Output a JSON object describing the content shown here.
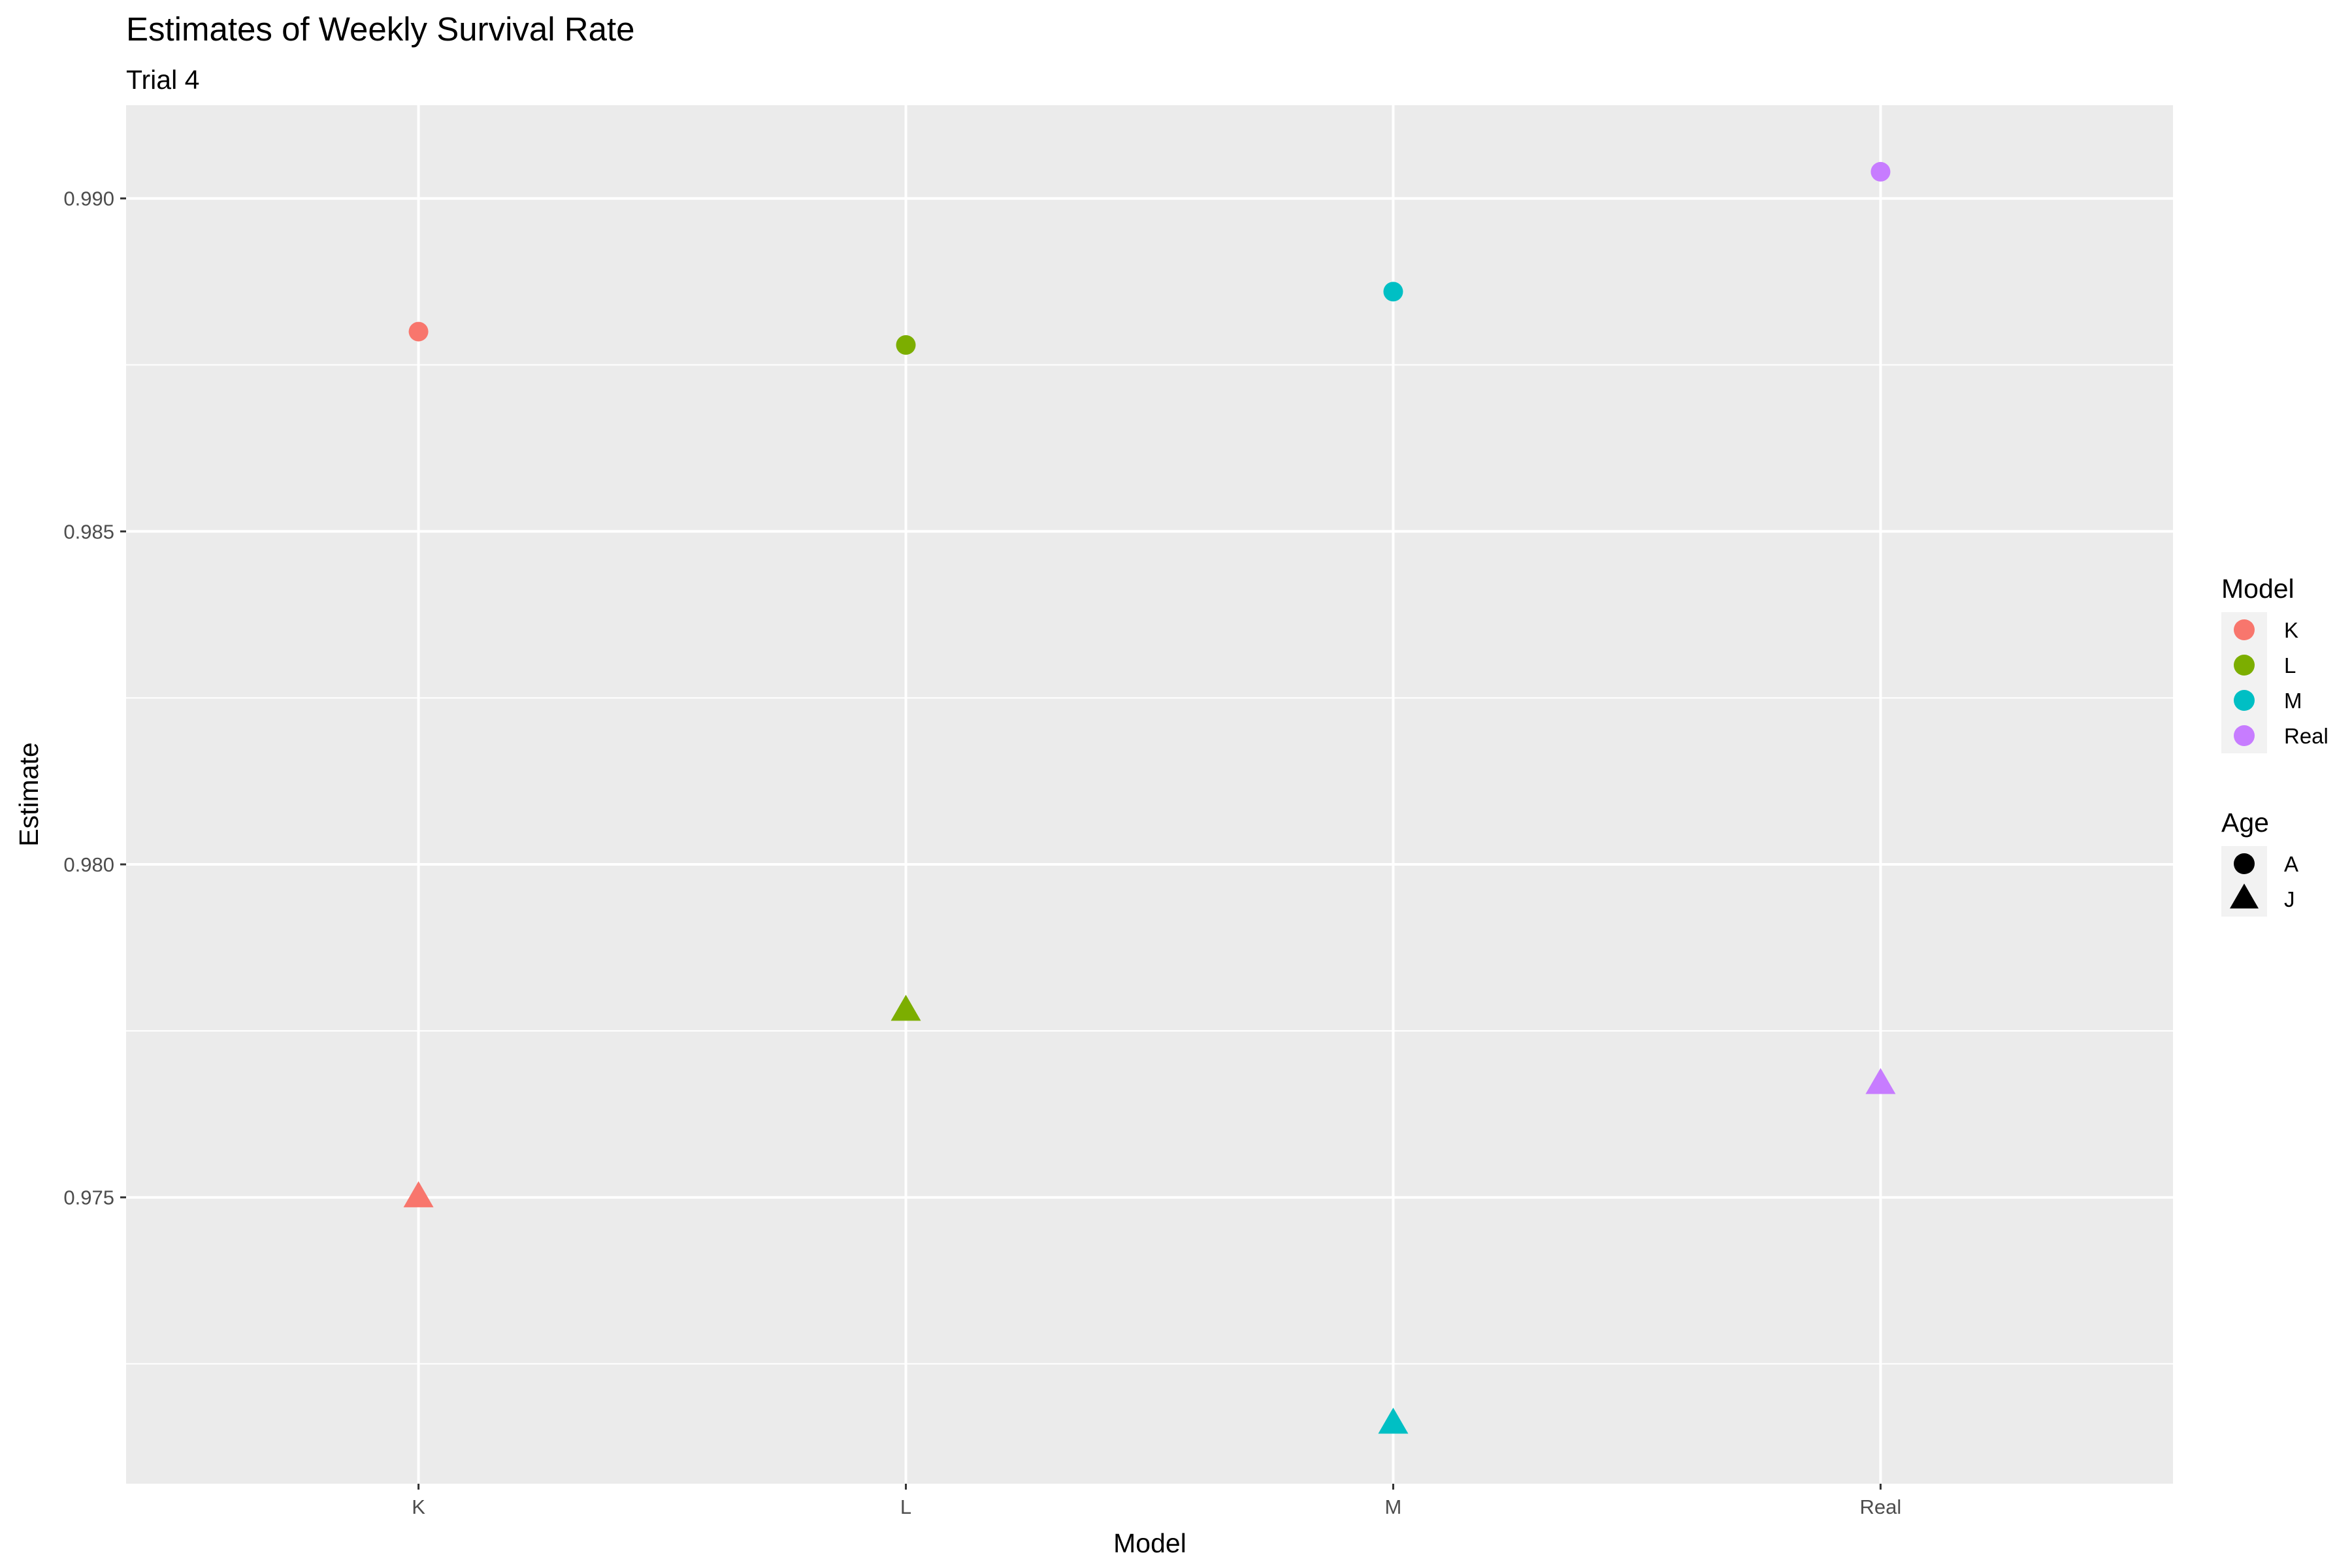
{
  "chart_data": {
    "type": "scatter",
    "title": "Estimates of Weekly Survival Rate",
    "subtitle": "Trial 4",
    "xlabel": "Model",
    "ylabel": "Estimate",
    "categories": [
      "K",
      "L",
      "M",
      "Real"
    ],
    "ylim": [
      0.9707,
      0.9914
    ],
    "yticks": [
      0.975,
      0.98,
      0.985,
      0.99
    ],
    "ytick_labels": [
      "0.975",
      "0.980",
      "0.985",
      "0.990"
    ],
    "grid": true,
    "series": [
      {
        "model": "K",
        "color": "#F8766D",
        "points": [
          {
            "age": "A",
            "y": 0.988
          },
          {
            "age": "J",
            "y": 0.975
          }
        ]
      },
      {
        "model": "L",
        "color": "#7CAE00",
        "points": [
          {
            "age": "A",
            "y": 0.9878
          },
          {
            "age": "J",
            "y": 0.9778
          }
        ]
      },
      {
        "model": "M",
        "color": "#00BFC4",
        "points": [
          {
            "age": "A",
            "y": 0.9886
          },
          {
            "age": "J",
            "y": 0.9716
          }
        ]
      },
      {
        "model": "Real",
        "color": "#C77CFF",
        "points": [
          {
            "age": "A",
            "y": 0.9904
          },
          {
            "age": "J",
            "y": 0.9767
          }
        ]
      }
    ],
    "legends": [
      {
        "title": "Model",
        "entries": [
          {
            "label": "K",
            "color": "#F8766D",
            "shape": "circle"
          },
          {
            "label": "L",
            "color": "#7CAE00",
            "shape": "circle"
          },
          {
            "label": "M",
            "color": "#00BFC4",
            "shape": "circle"
          },
          {
            "label": "Real",
            "color": "#C77CFF",
            "shape": "circle"
          }
        ]
      },
      {
        "title": "Age",
        "entries": [
          {
            "label": "A",
            "color": "#000000",
            "shape": "circle"
          },
          {
            "label": "J",
            "color": "#000000",
            "shape": "triangle"
          }
        ]
      }
    ],
    "legend_position": "right",
    "panel_background": "#EBEBEB",
    "grid_color": "#FFFFFF"
  }
}
